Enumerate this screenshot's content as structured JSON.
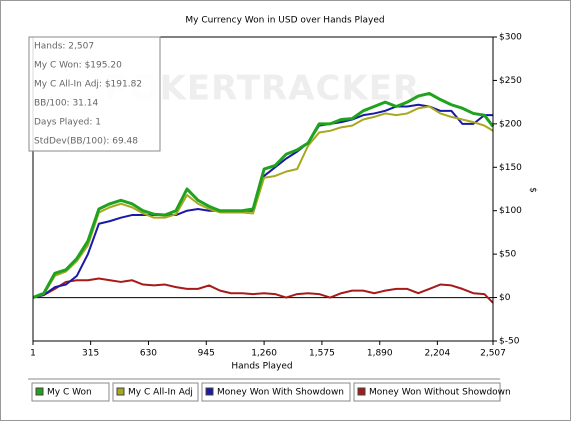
{
  "chart_data": {
    "type": "line",
    "title": "My Currency Won in USD over Hands Played",
    "x_label": "Hands Played",
    "y_label": "$",
    "watermark": "POKERTRACKER",
    "stats": [
      "Hands: 2,507",
      "My C Won: $195.20",
      "My C All-In Adj: $191.82",
      "BB/100: 31.14",
      "Days Played: 1",
      "StdDev(BB/100): 69.48"
    ],
    "xlim": [
      1,
      2507
    ],
    "xticks": [
      1,
      315,
      630,
      945,
      {
        "value": 1260,
        "label": "1,260"
      },
      {
        "value": 1575,
        "label": "1,575"
      },
      {
        "value": 1890,
        "label": "1,890"
      },
      {
        "value": 2204,
        "label": "2,204"
      },
      {
        "value": 2507,
        "label": "2,507"
      }
    ],
    "ylim": [
      -50,
      300
    ],
    "yticks": [
      {
        "value": -50,
        "label": "$-50"
      },
      {
        "value": 0,
        "label": "$0"
      },
      {
        "value": 50,
        "label": "$50"
      },
      {
        "value": 100,
        "label": "$100"
      },
      {
        "value": 150,
        "label": "$150"
      },
      {
        "value": 200,
        "label": "$200"
      },
      {
        "value": 250,
        "label": "$250"
      },
      {
        "value": 300,
        "label": "$300"
      }
    ],
    "x": [
      1,
      60,
      120,
      180,
      240,
      300,
      360,
      420,
      480,
      540,
      600,
      660,
      720,
      780,
      840,
      900,
      960,
      1020,
      1080,
      1140,
      1200,
      1260,
      1320,
      1380,
      1440,
      1500,
      1560,
      1620,
      1680,
      1740,
      1800,
      1860,
      1920,
      1980,
      2040,
      2100,
      2160,
      2220,
      2280,
      2340,
      2400,
      2460,
      2507
    ],
    "series": [
      {
        "name": "My C Won",
        "color": "#1fa31f",
        "values": [
          0,
          5,
          28,
          32,
          45,
          65,
          102,
          108,
          112,
          108,
          100,
          96,
          95,
          100,
          125,
          112,
          105,
          100,
          100,
          100,
          102,
          148,
          152,
          165,
          170,
          178,
          200,
          200,
          205,
          206,
          215,
          220,
          225,
          220,
          225,
          232,
          235,
          228,
          222,
          218,
          212,
          210,
          197
        ]
      },
      {
        "name": "My C All-In Adj",
        "color": "#a8a820",
        "values": [
          0,
          4,
          25,
          30,
          42,
          60,
          98,
          104,
          108,
          104,
          97,
          92,
          92,
          96,
          118,
          108,
          102,
          98,
          98,
          98,
          97,
          138,
          140,
          145,
          148,
          175,
          190,
          192,
          196,
          198,
          205,
          208,
          212,
          210,
          212,
          218,
          220,
          212,
          208,
          205,
          202,
          198,
          192
        ]
      },
      {
        "name": "Money Won With Showdown",
        "color": "#1a1aa8",
        "values": [
          0,
          3,
          12,
          15,
          25,
          50,
          85,
          88,
          92,
          95,
          95,
          95,
          95,
          95,
          100,
          102,
          100,
          100,
          100,
          100,
          100,
          140,
          150,
          160,
          168,
          178,
          198,
          200,
          202,
          205,
          210,
          212,
          215,
          220,
          220,
          222,
          220,
          215,
          215,
          200,
          200,
          210,
          210
        ]
      },
      {
        "name": "Money Won Without Showdown",
        "color": "#a81a1a",
        "values": [
          0,
          3,
          10,
          18,
          20,
          20,
          22,
          20,
          18,
          20,
          15,
          14,
          15,
          12,
          10,
          10,
          14,
          8,
          5,
          5,
          4,
          5,
          4,
          0,
          4,
          5,
          4,
          0,
          5,
          8,
          8,
          5,
          8,
          10,
          10,
          5,
          10,
          15,
          14,
          10,
          5,
          4,
          -6
        ]
      }
    ]
  }
}
